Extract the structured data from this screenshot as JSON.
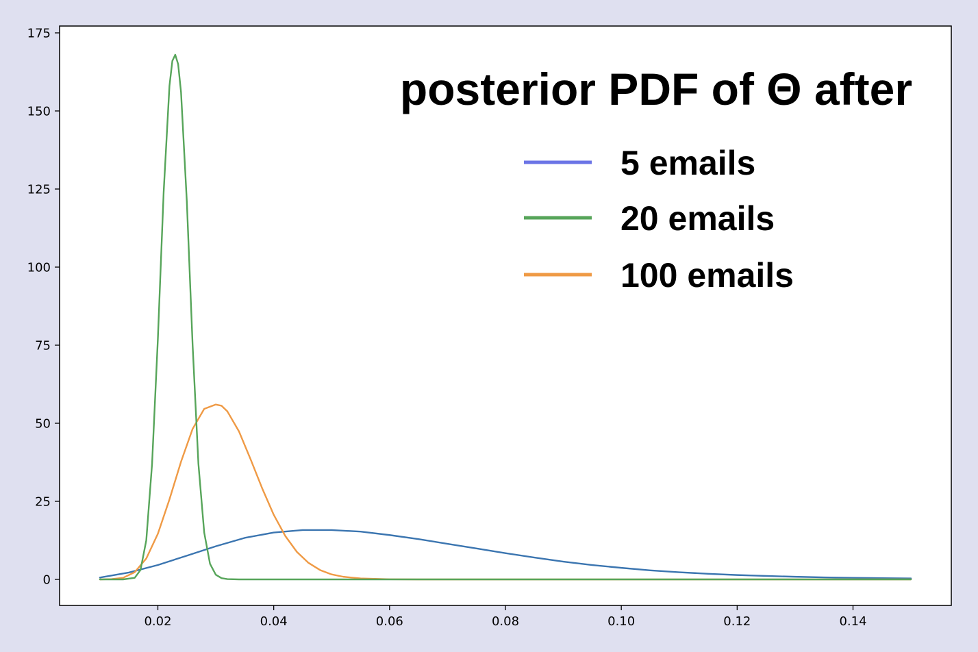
{
  "chart_data": {
    "type": "line",
    "title": "posterior PDF of Θ after",
    "xlabel": "",
    "ylabel": "",
    "xlim": [
      0.0,
      0.15
    ],
    "ylim": [
      -8,
      176
    ],
    "x_ticks": [
      0.02,
      0.04,
      0.06,
      0.08,
      0.1,
      0.12,
      0.14
    ],
    "x_tick_labels": [
      "0.02",
      "0.04",
      "0.06",
      "0.08",
      "0.10",
      "0.12",
      "0.14"
    ],
    "y_ticks": [
      0,
      25,
      50,
      75,
      100,
      125,
      150,
      175
    ],
    "y_tick_labels": [
      "0",
      "25",
      "50",
      "75",
      "100",
      "125",
      "150",
      "175"
    ],
    "grid": false,
    "legend_position": "upper-right",
    "legend": [
      {
        "label": "5 emails",
        "color": "#6b74e6"
      },
      {
        "label": "20 emails",
        "color": "#57a55a"
      },
      {
        "label": "100 emails",
        "color": "#ef9a45"
      }
    ],
    "series": [
      {
        "color": "#3b75b0",
        "x": [
          0.01,
          0.015,
          0.02,
          0.025,
          0.03,
          0.035,
          0.04,
          0.045,
          0.05,
          0.055,
          0.06,
          0.065,
          0.07,
          0.075,
          0.08,
          0.085,
          0.09,
          0.095,
          0.1,
          0.105,
          0.11,
          0.115,
          0.12,
          0.125,
          0.13,
          0.135,
          0.14,
          0.145,
          0.15
        ],
        "y": [
          0.6,
          2.2,
          4.6,
          7.6,
          10.6,
          13.3,
          15.0,
          15.8,
          15.8,
          15.3,
          14.2,
          12.9,
          11.4,
          9.9,
          8.4,
          7.0,
          5.7,
          4.6,
          3.7,
          2.9,
          2.3,
          1.8,
          1.4,
          1.1,
          0.85,
          0.65,
          0.5,
          0.4,
          0.3
        ]
      },
      {
        "color": "#ef9a45",
        "x": [
          0.01,
          0.012,
          0.014,
          0.016,
          0.018,
          0.02,
          0.022,
          0.024,
          0.026,
          0.028,
          0.03,
          0.031,
          0.032,
          0.034,
          0.036,
          0.038,
          0.04,
          0.042,
          0.044,
          0.046,
          0.048,
          0.05,
          0.052,
          0.055,
          0.06,
          0.065,
          0.07,
          0.08,
          0.1,
          0.12,
          0.15
        ],
        "y": [
          0.0,
          0.1,
          0.5,
          2.3,
          6.7,
          14.6,
          25.6,
          37.7,
          48.2,
          54.6,
          56.0,
          55.6,
          53.8,
          47.4,
          38.5,
          29.2,
          20.7,
          13.9,
          8.8,
          5.3,
          3.0,
          1.6,
          0.85,
          0.3,
          0.05,
          0.0,
          0.0,
          0.0,
          0.0,
          0.0,
          0.0
        ]
      },
      {
        "color": "#57a55a",
        "x": [
          0.01,
          0.014,
          0.016,
          0.017,
          0.018,
          0.019,
          0.02,
          0.021,
          0.022,
          0.0225,
          0.023,
          0.0235,
          0.024,
          0.025,
          0.026,
          0.027,
          0.028,
          0.029,
          0.03,
          0.031,
          0.032,
          0.034,
          0.04,
          0.06,
          0.1,
          0.15
        ],
        "y": [
          0.0,
          0.0,
          0.5,
          3.0,
          12.5,
          37.0,
          77.0,
          124.0,
          158.0,
          166.0,
          168.0,
          165.0,
          156.0,
          121.0,
          75.0,
          37.0,
          15.0,
          5.0,
          1.5,
          0.4,
          0.1,
          0.0,
          0.0,
          0.0,
          0.0,
          0.0
        ]
      }
    ]
  }
}
